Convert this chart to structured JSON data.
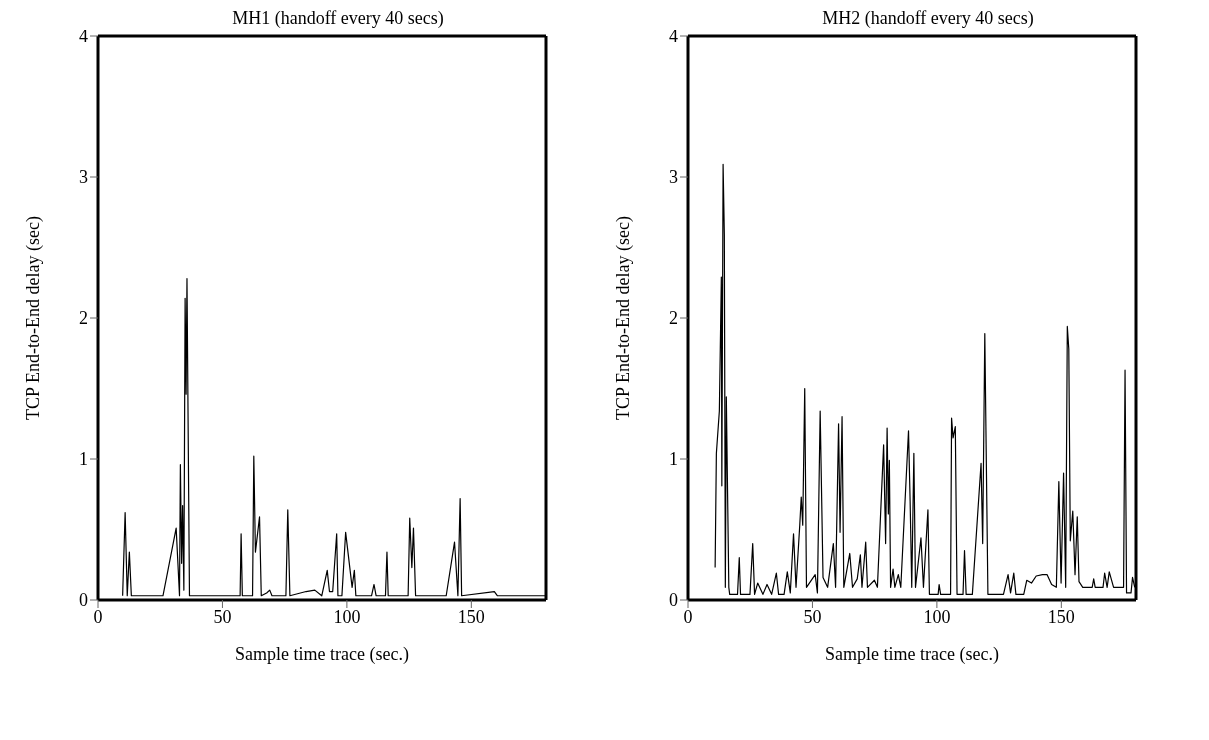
{
  "chart_data": [
    {
      "type": "line",
      "title": "MH1 (handoff every 40 secs)",
      "xlabel": "Sample time trace (sec.)",
      "ylabel": "TCP End-to-End delay (sec)",
      "color": "#000000",
      "x": [
        9.9,
        10.9,
        11.75,
        12.6,
        13.4,
        26.1,
        31.4,
        32.75,
        33.1,
        33.6,
        34,
        34.5,
        35,
        35.4,
        35.75,
        36.75,
        57.1,
        57.5,
        58,
        62.1,
        62.6,
        63.25,
        64.9,
        65.6,
        67.75,
        69,
        69.9,
        75.5,
        76.25,
        77.1,
        83.6,
        87.1,
        89.9,
        92.1,
        93,
        94.3,
        95.9,
        96.4,
        98,
        99.5,
        102.1,
        103,
        103.6,
        109.9,
        110.9,
        111.75,
        115.5,
        116.1,
        116.6,
        124.6,
        125.25,
        126.1,
        126.75,
        127.6,
        139.9,
        143.25,
        144.6,
        145.5,
        146.1,
        159.25,
        160.5,
        180
      ],
      "values": [
        0.03,
        0.62,
        0.03,
        0.34,
        0.03,
        0.03,
        0.51,
        0.03,
        0.96,
        0.26,
        0.67,
        0.07,
        2.14,
        1.46,
        2.28,
        0.03,
        0.03,
        0.47,
        0.03,
        0.03,
        1.02,
        0.34,
        0.59,
        0.03,
        0.05,
        0.07,
        0.03,
        0.03,
        0.64,
        0.03,
        0.06,
        0.07,
        0.03,
        0.21,
        0.06,
        0.06,
        0.47,
        0.03,
        0.03,
        0.48,
        0.09,
        0.21,
        0.03,
        0.03,
        0.11,
        0.03,
        0.03,
        0.34,
        0.03,
        0.03,
        0.58,
        0.23,
        0.51,
        0.03,
        0.03,
        0.41,
        0.03,
        0.72,
        0.03,
        0.06,
        0.03,
        0.03
      ],
      "xlim": [
        0,
        180
      ],
      "ylim": [
        0,
        4
      ],
      "xticks": [
        0,
        50,
        100,
        150
      ],
      "yticks": [
        0,
        1,
        2,
        3,
        4
      ],
      "grid": false,
      "legend": false
    },
    {
      "type": "line",
      "title": "MH2 (handoff every 40 secs)",
      "xlabel": "Sample time trace (sec.)",
      "ylabel": "TCP End-to-End delay (sec)",
      "color": "#000000",
      "x": [
        10.9,
        11.4,
        12.6,
        13.4,
        13.6,
        14.1,
        14.6,
        15,
        15.4,
        16.4,
        16.75,
        19.9,
        20.6,
        21.1,
        24.9,
        26,
        26.75,
        28,
        30.1,
        31.75,
        33.6,
        35.5,
        36.4,
        38.6,
        39.9,
        41.1,
        42.4,
        43.4,
        44.9,
        45.5,
        46.1,
        46.9,
        47.6,
        51.1,
        52,
        53.1,
        54.25,
        56.1,
        58.4,
        59.3,
        60.5,
        61.1,
        61.9,
        62.6,
        65,
        66.1,
        68,
        69.25,
        69.9,
        71.4,
        72.1,
        74.9,
        76.1,
        78.6,
        79.4,
        80,
        80.5,
        80.9,
        81.4,
        82.4,
        83.1,
        84.5,
        85.5,
        88.6,
        89.25,
        89.9,
        90.75,
        91.4,
        93.6,
        94.6,
        96.4,
        97,
        100.5,
        100.9,
        101.5,
        105.5,
        105.9,
        106.5,
        107.4,
        108.1,
        110.5,
        111.1,
        111.75,
        114.25,
        117.75,
        118.4,
        119.25,
        120.5,
        126.75,
        128.6,
        129.6,
        130.9,
        131.75,
        134.9,
        136.1,
        138,
        139.9,
        142.4,
        144.25,
        146.1,
        148,
        149,
        149.9,
        150.9,
        151.75,
        152.4,
        153,
        153.6,
        154.6,
        155.5,
        156.4,
        157.1,
        158.6,
        162.4,
        163,
        163.6,
        166.75,
        167.4,
        168.4,
        169.25,
        171,
        175,
        175.6,
        176.2,
        178,
        178.6,
        179.5
      ],
      "values": [
        0.23,
        1.04,
        1.34,
        2.29,
        0.81,
        3.09,
        2.59,
        0.09,
        1.44,
        0.09,
        0.04,
        0.04,
        0.3,
        0.04,
        0.04,
        0.4,
        0.04,
        0.12,
        0.04,
        0.11,
        0.04,
        0.19,
        0.04,
        0.04,
        0.2,
        0.05,
        0.47,
        0.09,
        0.53,
        0.73,
        0.53,
        1.5,
        0.09,
        0.18,
        0.05,
        1.34,
        0.16,
        0.09,
        0.4,
        0.09,
        1.25,
        0.48,
        1.3,
        0.09,
        0.33,
        0.09,
        0.15,
        0.32,
        0.09,
        0.41,
        0.09,
        0.14,
        0.09,
        1.1,
        0.4,
        1.22,
        0.61,
        0.99,
        0.09,
        0.22,
        0.09,
        0.18,
        0.09,
        1.2,
        0.7,
        0.09,
        1.04,
        0.09,
        0.44,
        0.09,
        0.64,
        0.04,
        0.04,
        0.11,
        0.04,
        0.04,
        1.29,
        1.15,
        1.23,
        0.04,
        0.04,
        0.35,
        0.04,
        0.04,
        0.97,
        0.4,
        1.89,
        0.04,
        0.04,
        0.18,
        0.05,
        0.19,
        0.04,
        0.04,
        0.14,
        0.12,
        0.17,
        0.18,
        0.18,
        0.11,
        0.09,
        0.84,
        0.12,
        0.9,
        0.09,
        1.94,
        1.78,
        0.42,
        0.63,
        0.18,
        0.59,
        0.13,
        0.09,
        0.09,
        0.15,
        0.09,
        0.09,
        0.19,
        0.09,
        0.2,
        0.09,
        0.09,
        1.63,
        0.05,
        0.05,
        0.16,
        0.09
      ],
      "xlim": [
        0,
        180
      ],
      "ylim": [
        0,
        4
      ],
      "xticks": [
        0,
        50,
        100,
        150
      ],
      "yticks": [
        0,
        1,
        2,
        3,
        4
      ],
      "grid": false,
      "legend": false
    }
  ]
}
